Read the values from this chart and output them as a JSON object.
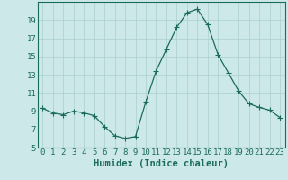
{
  "x": [
    0,
    1,
    2,
    3,
    4,
    5,
    6,
    7,
    8,
    9,
    10,
    11,
    12,
    13,
    14,
    15,
    16,
    17,
    18,
    19,
    20,
    21,
    22,
    23
  ],
  "y": [
    9.3,
    8.8,
    8.6,
    9.0,
    8.8,
    8.5,
    7.3,
    6.3,
    6.0,
    6.2,
    10.0,
    13.4,
    15.8,
    18.2,
    19.8,
    20.2,
    18.5,
    15.2,
    13.2,
    11.2,
    9.8,
    9.4,
    9.1,
    8.3
  ],
  "line_color": "#1a6b5a",
  "marker": "+",
  "marker_size": 4,
  "marker_linewidth": 0.8,
  "line_width": 0.9,
  "bg_color": "#cce8e8",
  "grid_color": "#aacfcf",
  "xlabel": "Humidex (Indice chaleur)",
  "ylim": [
    5,
    21
  ],
  "xlim": [
    -0.5,
    23.5
  ],
  "yticks": [
    5,
    7,
    9,
    11,
    13,
    15,
    17,
    19
  ],
  "xticks": [
    0,
    1,
    2,
    3,
    4,
    5,
    6,
    7,
    8,
    9,
    10,
    11,
    12,
    13,
    14,
    15,
    16,
    17,
    18,
    19,
    20,
    21,
    22,
    23
  ],
  "tick_color": "#1a6b5a",
  "axis_color": "#1a6b5a",
  "label_fontsize": 7.5,
  "tick_fontsize": 6.5
}
